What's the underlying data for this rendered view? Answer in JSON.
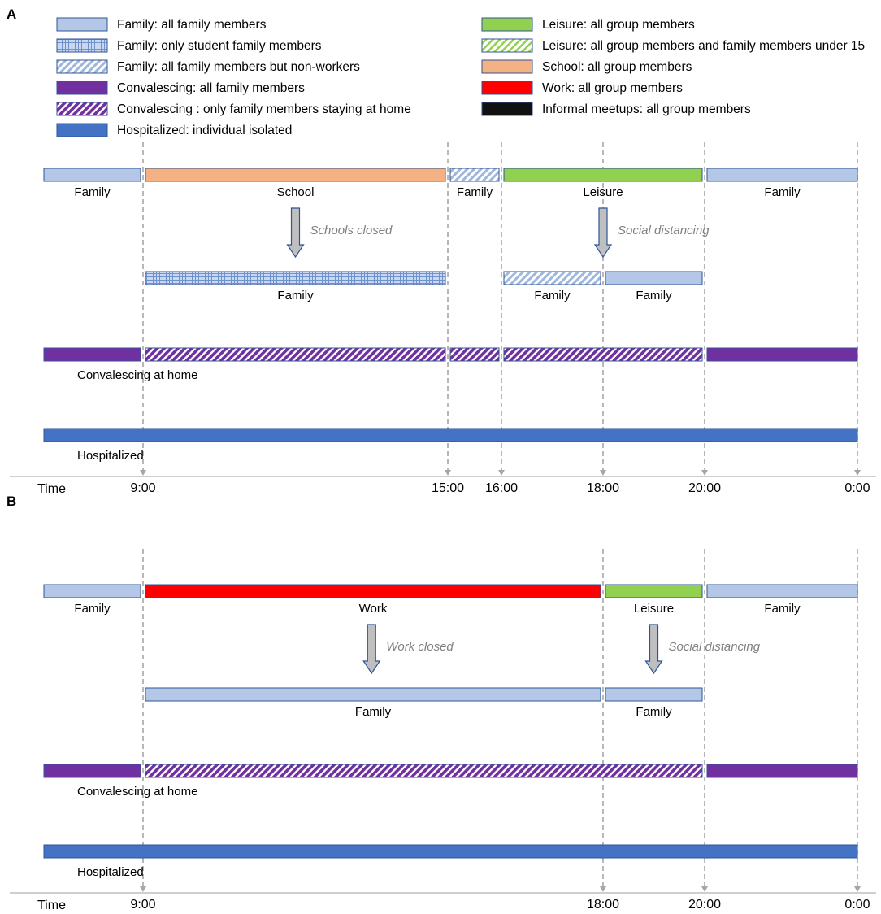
{
  "colors": {
    "family": "#b4c7e7",
    "family_border": "#2f5597",
    "leisure": "#92d050",
    "school": "#f4b183",
    "work": "#ff0000",
    "convalescing": "#7030a0",
    "hospitalized": "#4472c4",
    "informal": "#111111",
    "arrow": "#bfbfbf",
    "guide": "#a6a6a6"
  },
  "legend": {
    "left": [
      {
        "fill": "family",
        "text": "Family: all family members"
      },
      {
        "fill": "family-grid",
        "text": "Family: only student family members"
      },
      {
        "fill": "family-hatch",
        "text": "Family: all family members but non-workers"
      },
      {
        "fill": "convalescing",
        "text": "Convalescing: all family members"
      },
      {
        "fill": "convalescing-hatch",
        "text": "Convalescing : only family members staying at home"
      },
      {
        "fill": "hospitalized",
        "text": "Hospitalized: individual isolated"
      }
    ],
    "right": [
      {
        "fill": "leisure",
        "text": "Leisure: all group members"
      },
      {
        "fill": "leisure-hatch",
        "text": "Leisure: all group members and family members under 15"
      },
      {
        "fill": "school",
        "text": "School: all group members"
      },
      {
        "fill": "work",
        "text": "Work: all group members"
      },
      {
        "fill": "informal",
        "text": "Informal meetups: all group members"
      }
    ]
  },
  "panels": [
    {
      "label": "A",
      "time_label": "Time",
      "ticks": [
        "9:00",
        "15:00",
        "16:00",
        "18:00",
        "20:00",
        "0:00"
      ],
      "rows": [
        {
          "name": "schedule",
          "segments": [
            {
              "start": "0:00",
              "end": "9:00",
              "fill": "family",
              "label": "Family"
            },
            {
              "start": "9:00",
              "end": "15:00",
              "fill": "school",
              "label": "School"
            },
            {
              "start": "15:00",
              "end": "16:00",
              "fill": "family-hatch",
              "label": "Family"
            },
            {
              "start": "16:00",
              "end": "20:00",
              "fill": "leisure",
              "label": "Leisure"
            },
            {
              "start": "20:00",
              "end": "0:00",
              "fill": "family",
              "label": "Family"
            }
          ]
        },
        {
          "name": "restricted",
          "segments": [
            {
              "start": "9:00",
              "end": "15:00",
              "fill": "family-grid",
              "label": "Family"
            },
            {
              "start": "16:00",
              "end": "18:00",
              "fill": "family-hatch",
              "label": "Family"
            },
            {
              "start": "18:00",
              "end": "20:00",
              "fill": "family",
              "label": "Family"
            }
          ]
        },
        {
          "name": "convalescing",
          "row_label": "Convalescing at home",
          "segments": [
            {
              "start": "0:00",
              "end": "9:00",
              "fill": "convalescing"
            },
            {
              "start": "9:00",
              "end": "15:00",
              "fill": "convalescing-hatch"
            },
            {
              "start": "15:00",
              "end": "16:00",
              "fill": "convalescing-hatch"
            },
            {
              "start": "16:00",
              "end": "20:00",
              "fill": "convalescing-hatch"
            },
            {
              "start": "20:00",
              "end": "0:00",
              "fill": "convalescing"
            }
          ]
        },
        {
          "name": "hospitalized",
          "row_label": "Hospitalized",
          "segments": [
            {
              "start": "0:00",
              "end": "0:00",
              "fill": "hospitalized"
            }
          ]
        }
      ],
      "annotations": [
        {
          "at": "12:00",
          "text": "Schools closed"
        },
        {
          "at": "18:00",
          "text": "Social distancing"
        }
      ]
    },
    {
      "label": "B",
      "time_label": "Time",
      "ticks": [
        "9:00",
        "18:00",
        "20:00",
        "0:00"
      ],
      "rows": [
        {
          "name": "schedule",
          "segments": [
            {
              "start": "0:00",
              "end": "9:00",
              "fill": "family",
              "label": "Family"
            },
            {
              "start": "9:00",
              "end": "18:00",
              "fill": "work",
              "label": "Work"
            },
            {
              "start": "18:00",
              "end": "20:00",
              "fill": "leisure",
              "label": "Leisure"
            },
            {
              "start": "20:00",
              "end": "0:00",
              "fill": "family",
              "label": "Family"
            }
          ]
        },
        {
          "name": "restricted",
          "segments": [
            {
              "start": "9:00",
              "end": "18:00",
              "fill": "family",
              "label": "Family"
            },
            {
              "start": "18:00",
              "end": "20:00",
              "fill": "family",
              "label": "Family"
            }
          ]
        },
        {
          "name": "convalescing",
          "row_label": "Convalescing at home",
          "segments": [
            {
              "start": "0:00",
              "end": "9:00",
              "fill": "convalescing"
            },
            {
              "start": "9:00",
              "end": "20:00",
              "fill": "convalescing-hatch"
            },
            {
              "start": "20:00",
              "end": "0:00",
              "fill": "convalescing"
            }
          ]
        },
        {
          "name": "hospitalized",
          "row_label": "Hospitalized",
          "segments": [
            {
              "start": "0:00",
              "end": "0:00",
              "fill": "hospitalized"
            }
          ]
        }
      ],
      "annotations": [
        {
          "at": "13:30",
          "text": "Work closed"
        },
        {
          "at": "19:00",
          "text": "Social distancing"
        }
      ]
    }
  ]
}
